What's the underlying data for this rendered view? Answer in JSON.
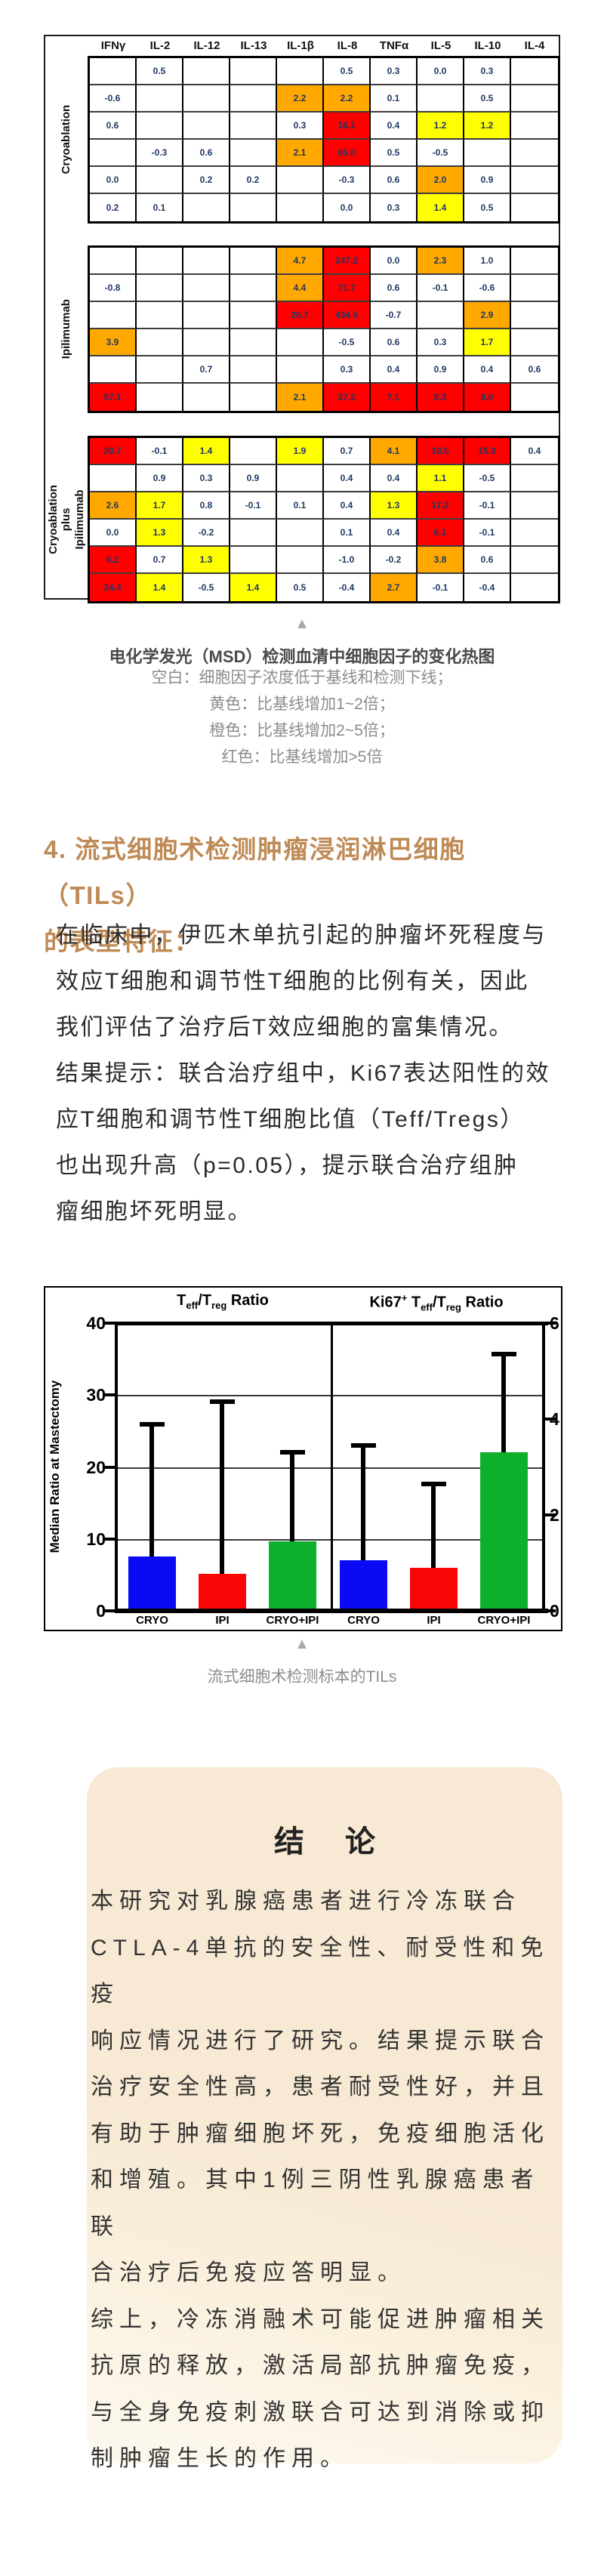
{
  "heatmap": {
    "columns": [
      "IFNγ",
      "IL-2",
      "IL-12",
      "IL-13",
      "IL-1β",
      "IL-8",
      "TNFα",
      "IL-5",
      "IL-10",
      "IL-4"
    ],
    "legend_colors": {
      "yellow": "#FFFF00",
      "orange": "#FFA800",
      "red": "#FE0000"
    },
    "groups": [
      {
        "label": "Cryoablation",
        "rows": [
          [
            "",
            "0.5",
            "",
            "",
            "",
            "0.5",
            "0.3",
            "0.0",
            "0.3",
            ""
          ],
          [
            "-0.6",
            "",
            "",
            "",
            "2.2|o",
            "2.2|o",
            "0.1",
            "",
            "0.5",
            ""
          ],
          [
            "0.6",
            "",
            "",
            "",
            "0.3",
            "16.1|r",
            "0.4",
            "1.2|y",
            "1.2|y",
            ""
          ],
          [
            "",
            "-0.3",
            "0.6",
            "",
            "2.1|o",
            "65.0|r",
            "0.5",
            "-0.5",
            "",
            ""
          ],
          [
            "0.0",
            "",
            "0.2",
            "0.2",
            "",
            "-0.3",
            "0.6",
            "2.0|o",
            "0.9",
            ""
          ],
          [
            "0.2",
            "0.1",
            "",
            "",
            "",
            "0.0",
            "0.3",
            "1.4|y",
            "0.5",
            ""
          ]
        ]
      },
      {
        "label": "Ipilimumab",
        "rows": [
          [
            "",
            "",
            "",
            "",
            "4.7|o",
            "247.2|r",
            "0.0",
            "2.3|o",
            "1.0",
            ""
          ],
          [
            "-0.8",
            "",
            "",
            "",
            "4.4|o",
            "71.7|r",
            "0.6",
            "-0.1",
            "-0.6",
            ""
          ],
          [
            "",
            "",
            "",
            "",
            "26.7|r",
            "434.5|r",
            "-0.7",
            "",
            "2.9|o",
            ""
          ],
          [
            "3.9|o",
            "",
            "",
            "",
            "",
            "-0.5",
            "0.6",
            "0.3",
            "1.7|y",
            ""
          ],
          [
            "",
            "",
            "0.7",
            "",
            "",
            "0.3",
            "0.4",
            "0.9",
            "0.4",
            "0.6"
          ],
          [
            "57.1|r",
            "",
            "",
            "",
            "2.1|o",
            "37.2|r",
            "7.1|r",
            "8.3|r",
            "8.0|r",
            ""
          ]
        ]
      },
      {
        "label": "Cryoablation plus\nIpilimumab",
        "rows": [
          [
            "20.7|r",
            "-0.1",
            "1.4|y",
            "",
            "1.9|y",
            "0.7",
            "4.1|o",
            "19.5|r",
            "15.3|r",
            "0.4"
          ],
          [
            "",
            "0.9",
            "0.3",
            "0.9",
            "",
            "0.4",
            "0.4",
            "1.1|y",
            "-0.5",
            ""
          ],
          [
            "2.6|o",
            "1.7|y",
            "0.8",
            "-0.1",
            "0.1",
            "0.4",
            "1.3|y",
            "17.2|r",
            "-0.1",
            ""
          ],
          [
            "0.0",
            "1.3|y",
            "-0.2",
            "",
            "",
            "0.1",
            "0.4",
            "6.1|r",
            "-0.1",
            ""
          ],
          [
            "6.2|r",
            "0.7",
            "1.3|y",
            "",
            "",
            "-1.0",
            "-0.2",
            "3.8|o",
            "0.6",
            ""
          ],
          [
            "24.4|r",
            "1.4|y",
            "-0.5",
            "1.4|y",
            "0.5",
            "-0.4",
            "2.7|o",
            "-0.1",
            "-0.4",
            ""
          ]
        ]
      }
    ],
    "caption_marker": "▲",
    "caption_title": "电化学发光（MSD）检测血清中细胞因子的变化热图",
    "caption_lines": "空白：细胞因子浓度低于基线和检测下线；\n黄色：比基线增加1~2倍；\n橙色：比基线增加2~5倍；\n红色：比基线增加>5倍"
  },
  "section": {
    "heading": "4. 流式细胞术检测肿瘤浸润淋巴细胞（TILs）\n的表型特征：",
    "body": "在临床中，伊匹木单抗引起的肿瘤坏死程度与\n效应T细胞和调节性T细胞的比例有关，因此\n我们评估了治疗后T效应细胞的富集情况。\n结果提示：联合治疗组中，Ki67表达阳性的效\n应T细胞和调节性T细胞比值（Teff/Tregs）\n也出现升高（p=0.05），提示联合治疗组肿\n瘤细胞坏死明显。"
  },
  "chart_data": {
    "type": "bar",
    "ylabel": "Median Ratio at Mastectomy",
    "left_axis": {
      "max": 40,
      "ticks": [
        40,
        30,
        20,
        10,
        0
      ]
    },
    "right_axis": {
      "max": 6,
      "ticks": [
        6,
        4,
        2,
        0
      ]
    },
    "gridlines": [
      30,
      20,
      10
    ],
    "grid_on": true,
    "panels": [
      {
        "title_marked": "T_eff_/T_reg_ Ratio",
        "title_plain": "Teff/Treg Ratio",
        "axis": "left",
        "categories": [
          "CRYO",
          "IPI",
          "CRYO+IPI"
        ],
        "values": [
          7.6,
          5.1,
          9.7
        ],
        "error_tops": [
          26.2,
          29.4,
          22.4
        ],
        "colors": [
          "#0A0AF5",
          "#FA0505",
          "#0EB02B"
        ]
      },
      {
        "title_marked": "Ki67^+^ T_eff_/T_reg_ Ratio",
        "title_plain": "Ki67+ Teff/Treg Ratio",
        "axis": "right",
        "categories": [
          "CRYO",
          "IPI",
          "CRYO+IPI"
        ],
        "values": [
          1.05,
          0.9,
          3.3
        ],
        "error_tops": [
          3.5,
          2.7,
          5.4
        ],
        "colors": [
          "#0A0AF5",
          "#FA0505",
          "#0EB02B"
        ]
      }
    ],
    "caption_marker": "▲",
    "caption": "流式细胞术检测标本的TILs"
  },
  "conclusion": {
    "title": "结 论",
    "body": "本研究对乳腺癌患者进行冷冻联合\nCTLA-4单抗的安全性、耐受性和免疫\n响应情况进行了研究。结果提示联合\n治疗安全性高，患者耐受性好，并且\n有助于肿瘤细胞坏死，免疫细胞活化\n和增殖。其中1例三阴性乳腺癌患者联\n合治疗后免疫应答明显。\n综上，冷冻消融术可能促进肿瘤相关\n抗原的释放，激活局部抗肿瘤免疫，\n与全身免疫刺激联合可达到消除或抑\n制肿瘤生长的作用。",
    "box_color": "#f7e9d3"
  }
}
